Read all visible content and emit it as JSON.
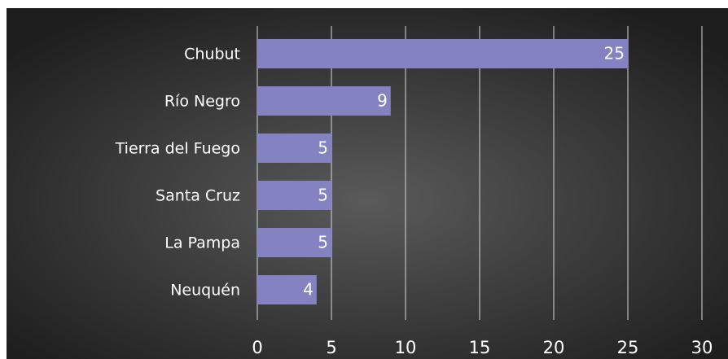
{
  "chart_data": {
    "type": "bar",
    "orientation": "horizontal",
    "categories": [
      "Chubut",
      "Río Negro",
      "Tierra del Fuego",
      "Santa Cruz",
      "La Pampa",
      "Neuquén"
    ],
    "values": [
      25,
      9,
      5,
      5,
      5,
      4
    ],
    "color": "#8482c1",
    "xlim": [
      0,
      30
    ],
    "xticks": [
      0,
      5,
      10,
      15,
      20,
      25,
      30
    ],
    "grid": true
  }
}
